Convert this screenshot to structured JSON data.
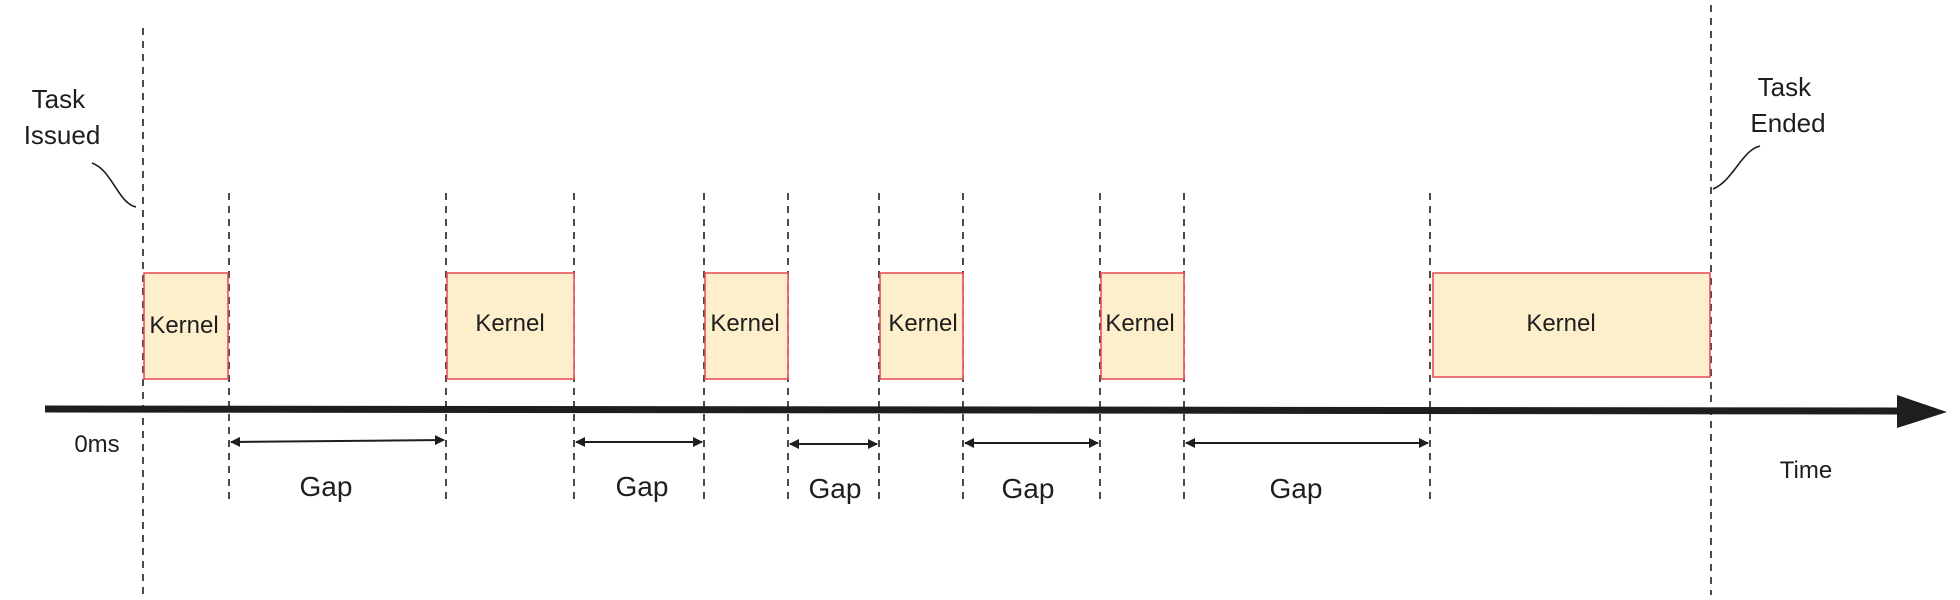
{
  "labels": {
    "task_issued": [
      "Task",
      "Issued"
    ],
    "task_ended": [
      "Task",
      "Ended"
    ],
    "origin": "0ms",
    "time_axis": "Time"
  },
  "kernels": [
    {
      "label": "Kernel"
    },
    {
      "label": "Kernel"
    },
    {
      "label": "Kernel"
    },
    {
      "label": "Kernel"
    },
    {
      "label": "Kernel"
    },
    {
      "label": "Kernel"
    }
  ],
  "gaps": [
    {
      "label": "Gap"
    },
    {
      "label": "Gap"
    },
    {
      "label": "Gap"
    },
    {
      "label": "Gap"
    },
    {
      "label": "Gap"
    }
  ],
  "colors": {
    "kernel_fill": "#fdefcb",
    "kernel_border": "#e8505b",
    "line": "#1e1e1e"
  }
}
